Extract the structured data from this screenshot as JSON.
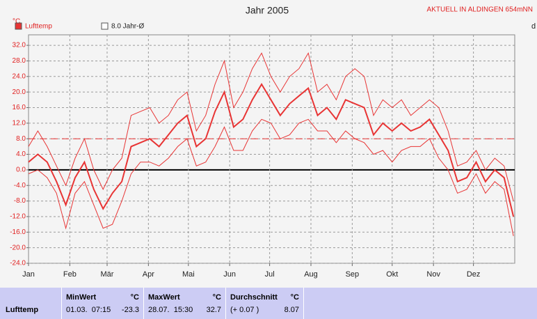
{
  "chart_data": {
    "type": "line",
    "title": "Jahr 2005",
    "location": "AKTUELL IN ALDINGEN 654mNN",
    "y_unit": "°C",
    "corner_text": "d",
    "x": [
      1,
      8,
      15,
      22,
      29,
      36,
      43,
      50,
      57,
      64,
      71,
      78,
      85,
      92,
      99,
      106,
      113,
      120,
      127,
      134,
      141,
      148,
      155,
      162,
      169,
      176,
      183,
      190,
      197,
      204,
      211,
      218,
      225,
      232,
      239,
      246,
      253,
      260,
      267,
      274,
      281,
      288,
      295,
      302,
      309,
      316,
      323,
      330,
      337,
      344,
      351,
      358,
      365
    ],
    "series": [
      {
        "name": "Lufttemp",
        "color": "#e83434",
        "values": [
          2,
          4,
          2,
          -3,
          -9,
          -2,
          2,
          -5,
          -10,
          -6,
          -3,
          6,
          7,
          8,
          6,
          9,
          12,
          14,
          6,
          8,
          15,
          20,
          11,
          13,
          18,
          22,
          18,
          14,
          17,
          19,
          21,
          14,
          16,
          13,
          18,
          17,
          16,
          9,
          12,
          10,
          12,
          10,
          11,
          13,
          9,
          5,
          -3,
          -2,
          2,
          -3,
          0,
          -2,
          -12
        ],
        "high": [
          6,
          10,
          6,
          1,
          -4,
          3,
          8,
          0,
          -5,
          0,
          3,
          14,
          15,
          16,
          12,
          14,
          18,
          20,
          10,
          14,
          22,
          28,
          16,
          20,
          26,
          30,
          24,
          20,
          24,
          26,
          30,
          20,
          22,
          18,
          24,
          26,
          24,
          14,
          18,
          16,
          18,
          14,
          16,
          18,
          16,
          10,
          1,
          2,
          5,
          0,
          3,
          1,
          -8
        ],
        "low": [
          -1,
          0,
          -2,
          -6,
          -15,
          -6,
          -3,
          -9,
          -15,
          -14,
          -8,
          -1,
          2,
          2,
          1,
          3,
          6,
          8,
          1,
          2,
          6,
          11,
          5,
          5,
          10,
          13,
          12,
          8,
          9,
          12,
          13,
          10,
          10,
          7,
          10,
          8,
          7,
          4,
          5,
          2,
          5,
          6,
          6,
          8,
          3,
          0,
          -6,
          -5,
          -1,
          -6,
          -3,
          -5,
          -17
        ]
      }
    ],
    "reference_line": {
      "value": 8,
      "label": "8.0 Jahr-Ø",
      "color": "#e83434"
    },
    "xlim": [
      1,
      366
    ],
    "xticks": [
      {
        "value": 1,
        "label": "Jan"
      },
      {
        "value": 32,
        "label": "Feb"
      },
      {
        "value": 60,
        "label": "Mär"
      },
      {
        "value": 91,
        "label": "Apr"
      },
      {
        "value": 121,
        "label": "Mai"
      },
      {
        "value": 152,
        "label": "Jun"
      },
      {
        "value": 182,
        "label": "Jul"
      },
      {
        "value": 213,
        "label": "Aug"
      },
      {
        "value": 244,
        "label": "Sep"
      },
      {
        "value": 274,
        "label": "Okt"
      },
      {
        "value": 305,
        "label": "Nov"
      },
      {
        "value": 335,
        "label": "Dez"
      }
    ],
    "ylim": [
      -24,
      34.7
    ],
    "yticks": [
      {
        "value": 32,
        "label": "32.0"
      },
      {
        "value": 28,
        "label": "28.0"
      },
      {
        "value": 24,
        "label": "24.0"
      },
      {
        "value": 20,
        "label": "20.0"
      },
      {
        "value": 16,
        "label": "16.0"
      },
      {
        "value": 12,
        "label": "12.0"
      },
      {
        "value": 8,
        "label": "8.0"
      },
      {
        "value": 4,
        "label": "4.0"
      },
      {
        "value": 0,
        "label": "0.0"
      },
      {
        "value": -4,
        "label": "-4.0"
      },
      {
        "value": -8,
        "label": "-8.0"
      },
      {
        "value": -12,
        "label": "-12.0"
      },
      {
        "value": -16,
        "label": "-16.0"
      },
      {
        "value": -20,
        "label": "-20.0"
      },
      {
        "value": -24,
        "label": "-24.0"
      }
    ],
    "grid": true
  },
  "table": {
    "row_label": "Lufttemp",
    "columns": [
      {
        "title": "MinWert",
        "unit": "°C",
        "time": "01.03.  07:15",
        "value": -23.3
      },
      {
        "title": "MaxWert",
        "unit": "°C",
        "time": "28.07.  15:30",
        "value": 32.7
      },
      {
        "title": "Durchschnitt",
        "unit": "°C",
        "time": "(+ 0.07 )",
        "value": 8.07
      }
    ]
  }
}
